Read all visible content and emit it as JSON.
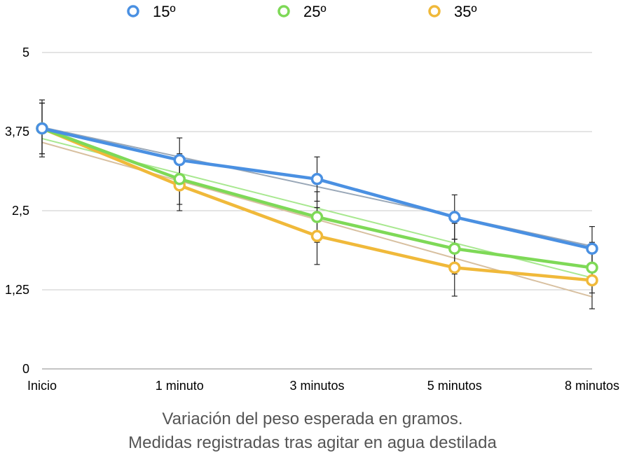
{
  "chart_data": {
    "type": "line",
    "categories": [
      "Inicio",
      "1 minuto",
      "3 minutos",
      "5 minutos",
      "8 minutos"
    ],
    "yticks": [
      "0",
      "1,25",
      "2,5",
      "3,75",
      "5"
    ],
    "ylim": [
      0,
      5
    ],
    "grid": true,
    "legend": "top",
    "caption": [
      "Variación del peso esperada en gramos.",
      "Medidas registradas tras agitar en agua destilada"
    ],
    "series": [
      {
        "name": "15º",
        "color": "#4a90e2",
        "trend_color": "#9aa8b8",
        "values": [
          3.8,
          3.3,
          3.0,
          2.4,
          1.9
        ],
        "error": [
          0.45,
          0.35,
          0.35,
          0.35,
          0.35
        ]
      },
      {
        "name": "25º",
        "color": "#7ed957",
        "trend_color": "#a8e890",
        "values": [
          3.8,
          3.0,
          2.4,
          1.9,
          1.6
        ],
        "error": [
          0.4,
          0.4,
          0.4,
          0.4,
          0.4
        ]
      },
      {
        "name": "35º",
        "color": "#f0b93a",
        "trend_color": "#d8c0a0",
        "values": [
          3.8,
          2.9,
          2.1,
          1.6,
          1.4
        ],
        "error": [
          0.4,
          0.4,
          0.45,
          0.45,
          0.45
        ]
      }
    ]
  }
}
